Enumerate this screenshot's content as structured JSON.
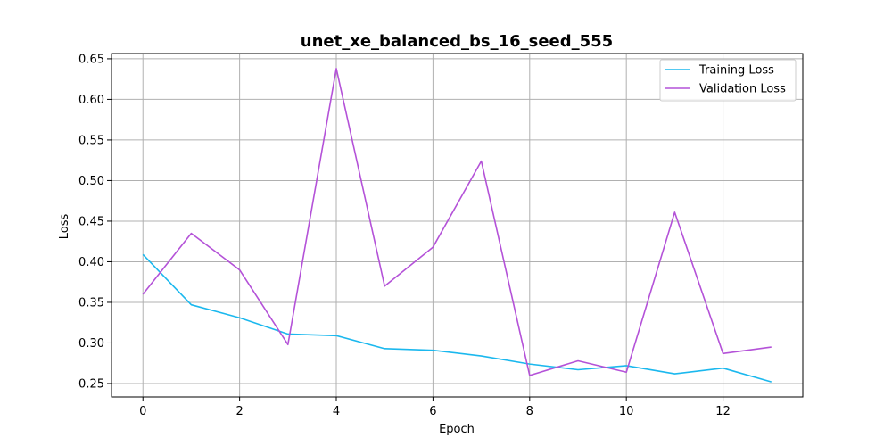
{
  "chart_data": {
    "type": "line",
    "title": "unet_xe_balanced_bs_16_seed_555",
    "xlabel": "Epoch",
    "ylabel": "Loss",
    "x": [
      0,
      1,
      2,
      3,
      4,
      5,
      6,
      7,
      8,
      9,
      10,
      11,
      12,
      13
    ],
    "xlim": [
      -0.65,
      13.65
    ],
    "ylim": [
      0.2335,
      0.6565
    ],
    "xticks": [
      0,
      2,
      4,
      6,
      8,
      10,
      12
    ],
    "xtick_labels": [
      "0",
      "2",
      "4",
      "6",
      "8",
      "10",
      "12"
    ],
    "yticks": [
      0.25,
      0.3,
      0.35,
      0.4,
      0.45,
      0.5,
      0.55,
      0.6,
      0.65
    ],
    "ytick_labels": [
      "0.25",
      "0.30",
      "0.35",
      "0.40",
      "0.45",
      "0.50",
      "0.55",
      "0.60",
      "0.65"
    ],
    "grid": true,
    "legend_position": "top-right",
    "series": [
      {
        "name": "Training Loss",
        "color": "#1bb8ee",
        "values": [
          0.409,
          0.347,
          0.331,
          0.311,
          0.309,
          0.293,
          0.291,
          0.284,
          0.274,
          0.267,
          0.272,
          0.262,
          0.269,
          0.252
        ]
      },
      {
        "name": "Validation Loss",
        "color": "#b452d8",
        "values": [
          0.36,
          0.435,
          0.39,
          0.298,
          0.638,
          0.37,
          0.418,
          0.524,
          0.26,
          0.278,
          0.264,
          0.461,
          0.287,
          0.295
        ]
      }
    ]
  }
}
